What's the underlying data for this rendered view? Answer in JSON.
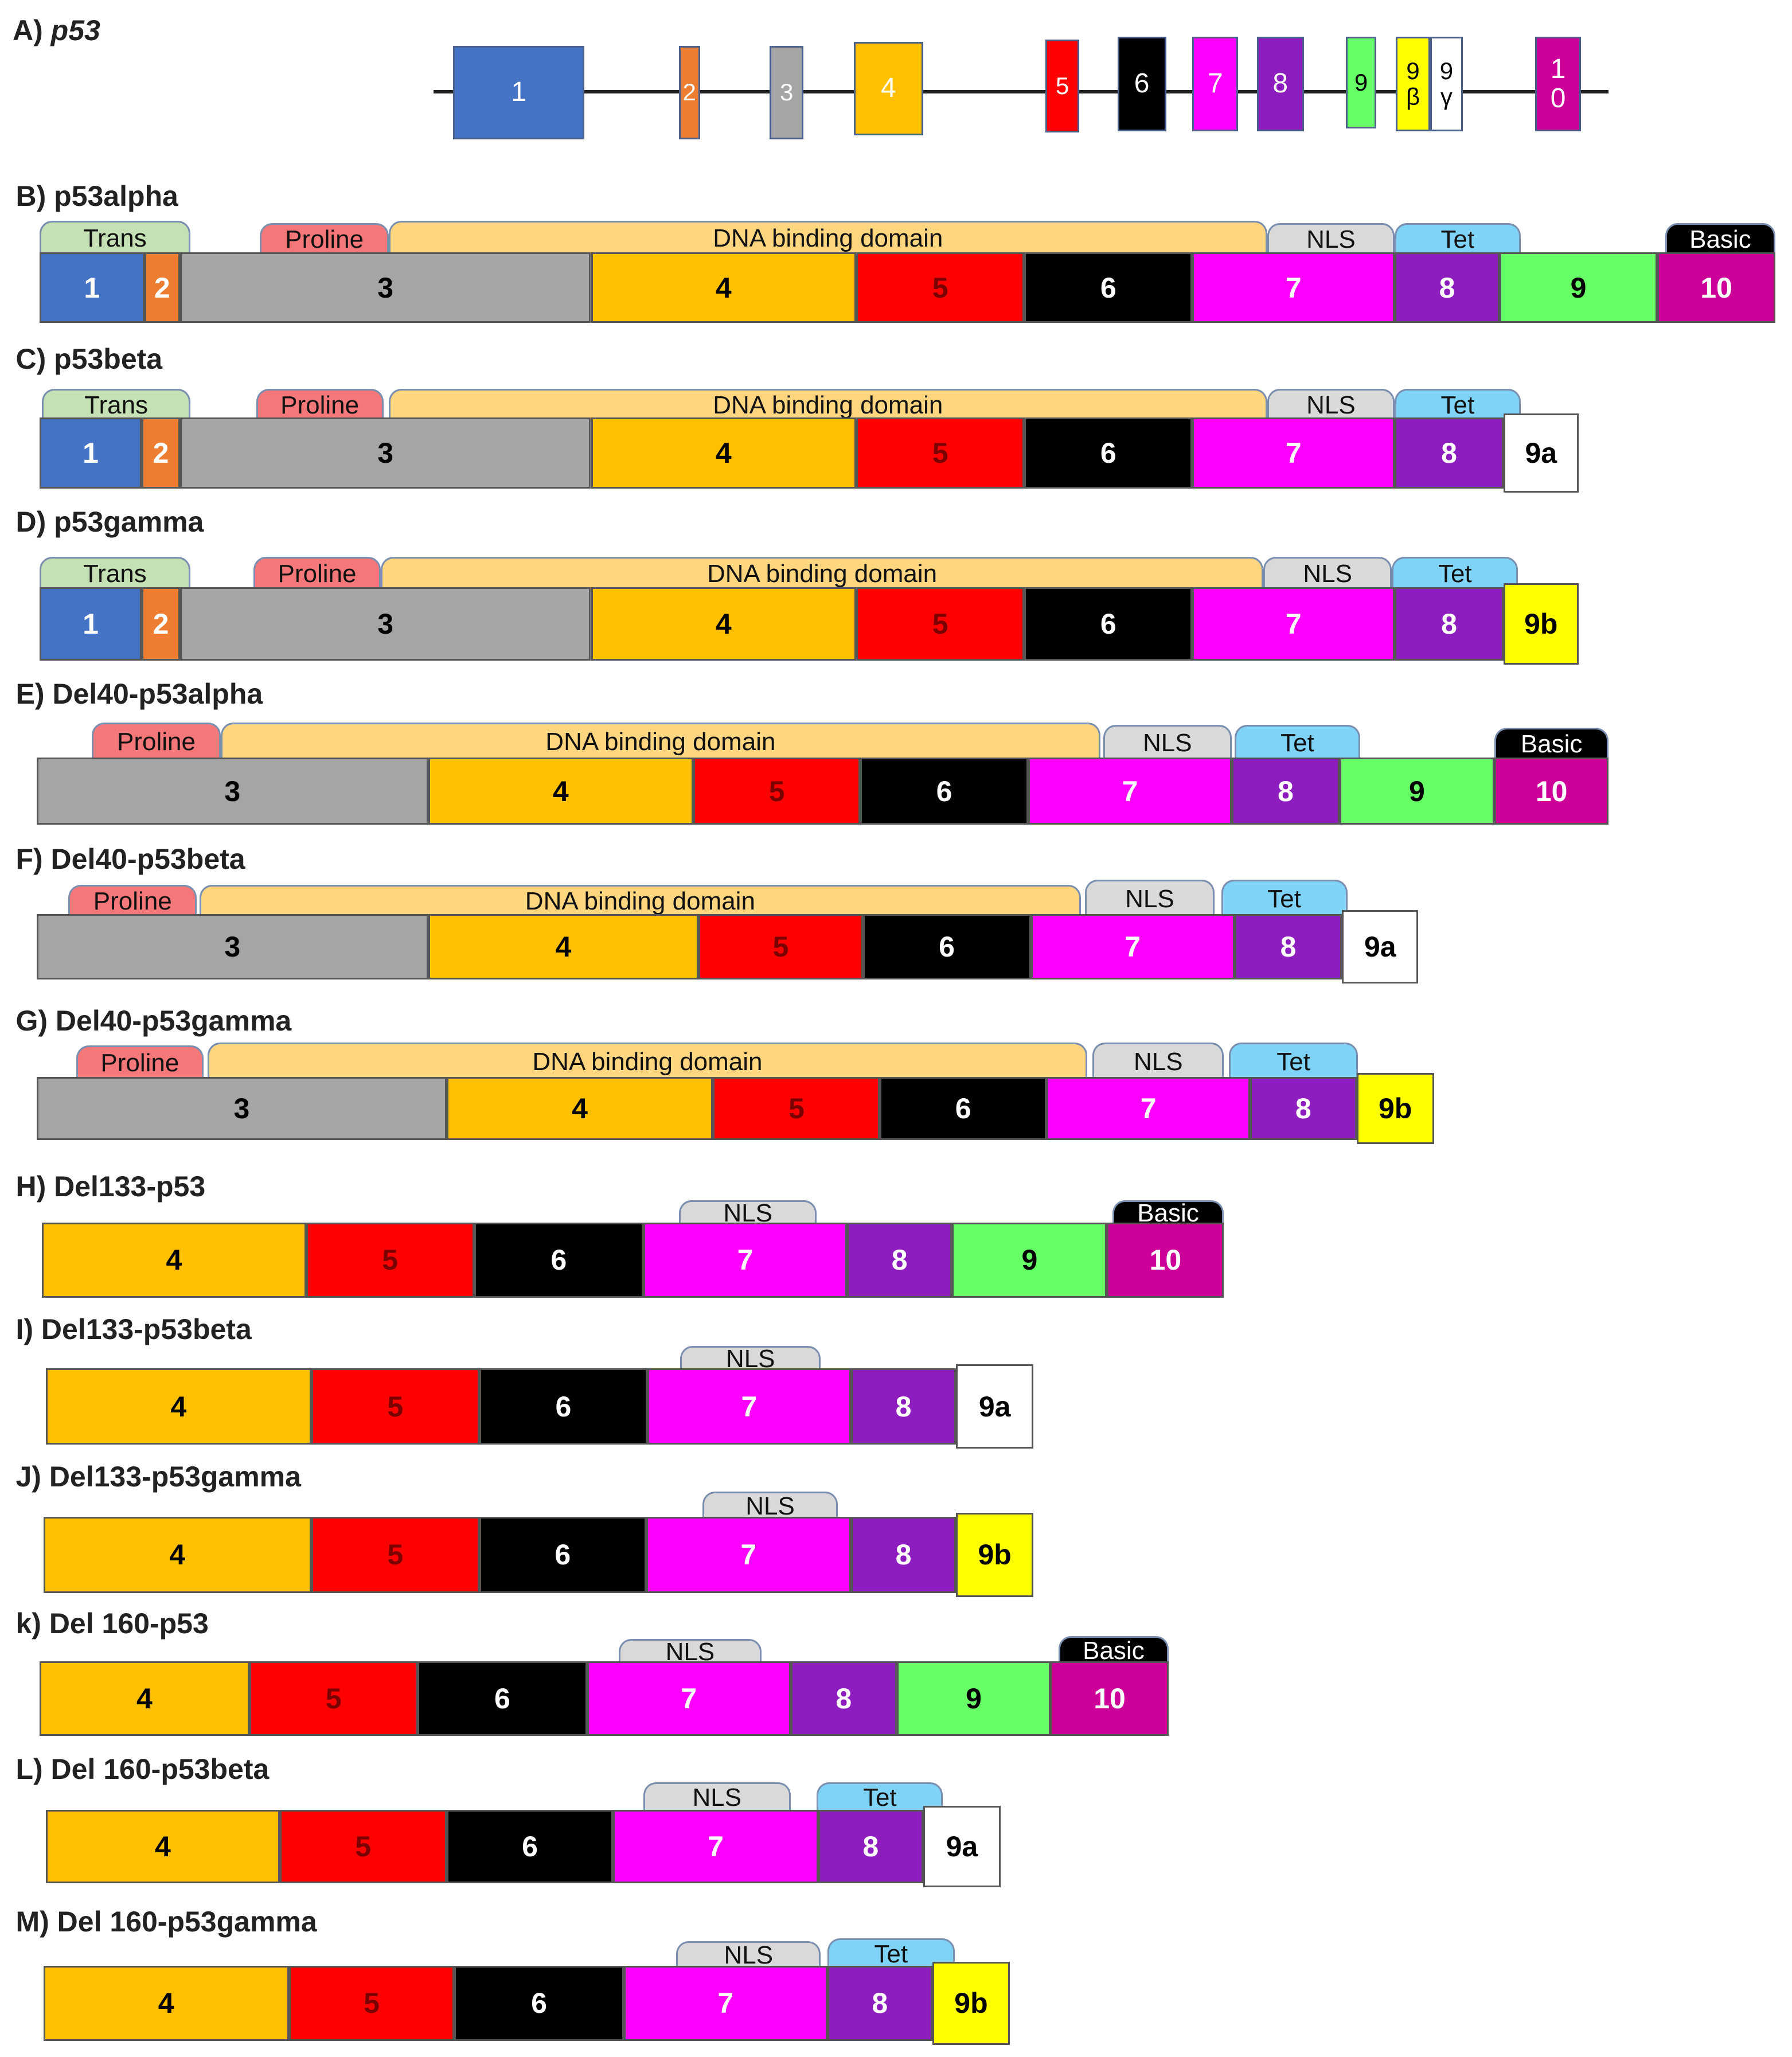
{
  "colors": {
    "e1": "#4472C4",
    "e2": "#ED7D31",
    "e3": "#A5A5A5",
    "e4": "#FFC000",
    "e5": "#FF0000",
    "e6": "#000000",
    "e7": "#FF00FF",
    "e8": "#8E1DBF",
    "e9": "#66FF66",
    "e9a": "#FFFFFF",
    "e9b": "#FFFF00",
    "e10": "#CC0099",
    "Trans": "#C5E0B4",
    "Proline": "#F4787A",
    "DNA binding domain": "#FFD680",
    "NLS": "#D9D9D9",
    "Tet": "#7FD3F7",
    "Basic": "#000000"
  },
  "gene": {
    "label_letter": "A)",
    "label_name": "p53",
    "exons": [
      {
        "label": "1",
        "color": "e1"
      },
      {
        "label": "2",
        "color": "e2"
      },
      {
        "label": "3",
        "color": "e3"
      },
      {
        "label": "4",
        "color": "e4"
      },
      {
        "label": "5",
        "color": "e5"
      },
      {
        "label": "6",
        "color": "e6"
      },
      {
        "label": "7",
        "color": "e7"
      },
      {
        "label": "8",
        "color": "e8"
      },
      {
        "label": "9",
        "color": "e9"
      },
      {
        "label": "9\nβ",
        "color": "e9b"
      },
      {
        "label": "9\nγ",
        "color": "e9a"
      },
      {
        "label": "1\n0",
        "color": "e10"
      }
    ]
  },
  "isoforms": [
    {
      "label": "B) p53alpha",
      "exons": [
        "1",
        "2",
        "3",
        "4",
        "5",
        "6",
        "7",
        "8",
        "9",
        "10"
      ],
      "domains": [
        "Trans",
        "Proline",
        "DNA binding domain",
        "NLS",
        "Tet",
        "Basic"
      ]
    },
    {
      "label": "C) p53beta",
      "exons": [
        "1",
        "2",
        "3",
        "4",
        "5",
        "6",
        "7",
        "8",
        "9a"
      ],
      "domains": [
        "Trans",
        "Proline",
        "DNA binding domain",
        "NLS",
        "Tet"
      ]
    },
    {
      "label": "D) p53gamma",
      "exons": [
        "1",
        "2",
        "3",
        "4",
        "5",
        "6",
        "7",
        "8",
        "9b"
      ],
      "domains": [
        "Trans",
        "Proline",
        "DNA binding domain",
        "NLS",
        "Tet"
      ]
    },
    {
      "label": "E) Del40-p53alpha",
      "exons": [
        "3",
        "4",
        "5",
        "6",
        "7",
        "8",
        "9",
        "10"
      ],
      "domains": [
        "Proline",
        "DNA binding domain",
        "NLS",
        "Tet",
        "Basic"
      ]
    },
    {
      "label": "F) Del40-p53beta",
      "exons": [
        "3",
        "4",
        "5",
        "6",
        "7",
        "8",
        "9a"
      ],
      "domains": [
        "Proline",
        "DNA binding domain",
        "NLS",
        "Tet"
      ]
    },
    {
      "label": "G) Del40-p53gamma",
      "exons": [
        "3",
        "4",
        "5",
        "6",
        "7",
        "8",
        "9b"
      ],
      "domains": [
        "Proline",
        "DNA binding domain",
        "NLS",
        "Tet"
      ]
    },
    {
      "label": "H) Del133-p53",
      "exons": [
        "4",
        "5",
        "6",
        "7",
        "8",
        "9",
        "10"
      ],
      "domains": [
        "NLS",
        "Basic"
      ]
    },
    {
      "label": "I) Del133-p53beta",
      "exons": [
        "4",
        "5",
        "6",
        "7",
        "8",
        "9a"
      ],
      "domains": [
        "NLS"
      ]
    },
    {
      "label": "J) Del133-p53gamma",
      "exons": [
        "4",
        "5",
        "6",
        "7",
        "8",
        "9b"
      ],
      "domains": [
        "NLS"
      ]
    },
    {
      "label": "k) Del 160-p53",
      "exons": [
        "4",
        "5",
        "6",
        "7",
        "8",
        "9",
        "10"
      ],
      "domains": [
        "NLS",
        "Basic"
      ]
    },
    {
      "label": "L) Del 160-p53beta",
      "exons": [
        "4",
        "5",
        "6",
        "7",
        "8",
        "9a"
      ],
      "domains": [
        "NLS",
        "Tet"
      ]
    },
    {
      "label": "M) Del 160-p53gamma",
      "exons": [
        "4",
        "5",
        "6",
        "7",
        "8",
        "9b"
      ],
      "domains": [
        "NLS",
        "Tet"
      ]
    }
  ]
}
